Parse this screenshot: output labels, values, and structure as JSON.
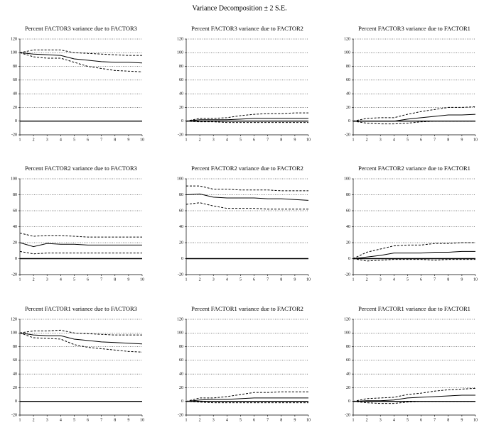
{
  "title": "Variance Decomposition ± 2 S.E.",
  "chart_data": [
    {
      "type": "line",
      "title": "Percent FACTOR3 variance due to FACTOR3",
      "x": [
        1,
        2,
        3,
        4,
        5,
        6,
        7,
        8,
        9,
        10
      ],
      "xlim": [
        1,
        10
      ],
      "xticks": [
        1,
        2,
        3,
        4,
        5,
        6,
        7,
        8,
        9,
        10
      ],
      "ylim": [
        -20,
        120
      ],
      "yticks": [
        -20,
        0,
        20,
        40,
        60,
        80,
        100,
        120
      ],
      "grid": true,
      "series": [
        {
          "color": "#000000",
          "style": "solid",
          "values": [
            100,
            98,
            97,
            96,
            91,
            89,
            87,
            86,
            86,
            85
          ]
        },
        {
          "color": "#000000",
          "style": "dashed",
          "values": [
            100,
            104,
            104,
            104,
            100,
            99,
            98,
            97,
            96,
            96
          ]
        },
        {
          "color": "#000000",
          "style": "dashed",
          "values": [
            100,
            94,
            92,
            92,
            86,
            80,
            77,
            74,
            73,
            72
          ]
        }
      ]
    },
    {
      "type": "line",
      "title": "Percent FACTOR3 variance due to FACTOR2",
      "x": [
        1,
        2,
        3,
        4,
        5,
        6,
        7,
        8,
        9,
        10
      ],
      "xlim": [
        1,
        10
      ],
      "xticks": [
        1,
        2,
        3,
        4,
        5,
        6,
        7,
        8,
        9,
        10
      ],
      "ylim": [
        -20,
        120
      ],
      "yticks": [
        -20,
        0,
        20,
        40,
        60,
        80,
        100,
        120
      ],
      "grid": true,
      "series": [
        {
          "color": "#000000",
          "style": "solid",
          "values": [
            0,
            2,
            2,
            2,
            3,
            4,
            4,
            4,
            4,
            4
          ]
        },
        {
          "color": "#000000",
          "style": "dashed",
          "values": [
            0,
            4,
            4,
            5,
            8,
            10,
            11,
            11,
            12,
            12
          ]
        },
        {
          "color": "#000000",
          "style": "dashed",
          "values": [
            0,
            -1,
            -1,
            -2,
            -2,
            -2,
            -2,
            -2,
            -2,
            -2
          ]
        }
      ]
    },
    {
      "type": "line",
      "title": "Percent FACTOR3 variance due to FACTOR1",
      "x": [
        1,
        2,
        3,
        4,
        5,
        6,
        7,
        8,
        9,
        10
      ],
      "xlim": [
        1,
        10
      ],
      "xticks": [
        1,
        2,
        3,
        4,
        5,
        6,
        7,
        8,
        9,
        10
      ],
      "ylim": [
        -20,
        120
      ],
      "yticks": [
        -20,
        0,
        20,
        40,
        60,
        80,
        100,
        120
      ],
      "grid": true,
      "series": [
        {
          "color": "#000000",
          "style": "solid",
          "values": [
            0,
            0,
            0,
            0,
            3,
            5,
            7,
            9,
            9,
            10
          ]
        },
        {
          "color": "#000000",
          "style": "dashed",
          "values": [
            0,
            4,
            5,
            5,
            10,
            14,
            17,
            20,
            20,
            21
          ]
        },
        {
          "color": "#000000",
          "style": "dashed",
          "values": [
            0,
            -3,
            -4,
            -4,
            -3,
            -1,
            0,
            0,
            0,
            0
          ]
        }
      ]
    },
    {
      "type": "line",
      "title": "Percent FACTOR2 variance due to FACTOR3",
      "x": [
        1,
        2,
        3,
        4,
        5,
        6,
        7,
        8,
        9,
        10
      ],
      "xlim": [
        1,
        10
      ],
      "xticks": [
        1,
        2,
        3,
        4,
        5,
        6,
        7,
        8,
        9,
        10
      ],
      "ylim": [
        -20,
        100
      ],
      "yticks": [
        -20,
        0,
        20,
        40,
        60,
        80,
        100
      ],
      "grid": true,
      "series": [
        {
          "color": "#000000",
          "style": "solid",
          "values": [
            20,
            15,
            19,
            18,
            18,
            17,
            17,
            17,
            17,
            17
          ]
        },
        {
          "color": "#000000",
          "style": "dashed",
          "values": [
            32,
            28,
            29,
            29,
            28,
            27,
            27,
            27,
            27,
            27
          ]
        },
        {
          "color": "#000000",
          "style": "dashed",
          "values": [
            9,
            6,
            7,
            7,
            7,
            7,
            7,
            7,
            7,
            7
          ]
        }
      ]
    },
    {
      "type": "line",
      "title": "Percent FACTOR2 variance due to FACTOR2",
      "x": [
        1,
        2,
        3,
        4,
        5,
        6,
        7,
        8,
        9,
        10
      ],
      "xlim": [
        1,
        10
      ],
      "xticks": [
        1,
        2,
        3,
        4,
        5,
        6,
        7,
        8,
        9,
        10
      ],
      "ylim": [
        -20,
        100
      ],
      "yticks": [
        -20,
        0,
        20,
        40,
        60,
        80,
        100
      ],
      "grid": true,
      "series": [
        {
          "color": "#000000",
          "style": "solid",
          "values": [
            80,
            81,
            77,
            76,
            76,
            76,
            75,
            75,
            74,
            73
          ]
        },
        {
          "color": "#000000",
          "style": "dashed",
          "values": [
            91,
            91,
            87,
            87,
            86,
            86,
            86,
            85,
            85,
            85
          ]
        },
        {
          "color": "#000000",
          "style": "dashed",
          "values": [
            68,
            70,
            66,
            63,
            63,
            63,
            62,
            62,
            62,
            62
          ]
        }
      ]
    },
    {
      "type": "line",
      "title": "Percent FACTOR2 variance due to FACTOR1",
      "x": [
        1,
        2,
        3,
        4,
        5,
        6,
        7,
        8,
        9,
        10
      ],
      "xlim": [
        1,
        10
      ],
      "xticks": [
        1,
        2,
        3,
        4,
        5,
        6,
        7,
        8,
        9,
        10
      ],
      "ylim": [
        -20,
        100
      ],
      "yticks": [
        -20,
        0,
        20,
        40,
        60,
        80,
        100
      ],
      "grid": true,
      "series": [
        {
          "color": "#000000",
          "style": "solid",
          "values": [
            0,
            2,
            4,
            7,
            7,
            7,
            8,
            8,
            9,
            9
          ]
        },
        {
          "color": "#000000",
          "style": "dashed",
          "values": [
            0,
            8,
            12,
            16,
            17,
            17,
            19,
            19,
            20,
            20
          ]
        },
        {
          "color": "#000000",
          "style": "dashed",
          "values": [
            0,
            -3,
            -2,
            -1,
            -1,
            -1,
            -2,
            -1,
            -1,
            -1
          ]
        }
      ]
    },
    {
      "type": "line",
      "title": "Percent FACTOR1 variance due to FACTOR3",
      "x": [
        1,
        2,
        3,
        4,
        5,
        6,
        7,
        8,
        9,
        10
      ],
      "xlim": [
        1,
        10
      ],
      "xticks": [
        1,
        2,
        3,
        4,
        5,
        6,
        7,
        8,
        9,
        10
      ],
      "ylim": [
        -20,
        120
      ],
      "yticks": [
        -20,
        0,
        20,
        40,
        60,
        80,
        100,
        120
      ],
      "grid": true,
      "series": [
        {
          "color": "#000000",
          "style": "solid",
          "values": [
            100,
            97,
            96,
            96,
            91,
            89,
            87,
            86,
            85,
            84
          ]
        },
        {
          "color": "#000000",
          "style": "dashed",
          "values": [
            100,
            103,
            103,
            104,
            100,
            99,
            98,
            97,
            97,
            97
          ]
        },
        {
          "color": "#000000",
          "style": "dashed",
          "values": [
            100,
            93,
            92,
            91,
            83,
            79,
            77,
            75,
            73,
            72
          ]
        }
      ]
    },
    {
      "type": "line",
      "title": "Percent FACTOR1 variance due to FACTOR2",
      "x": [
        1,
        2,
        3,
        4,
        5,
        6,
        7,
        8,
        9,
        10
      ],
      "xlim": [
        1,
        10
      ],
      "xticks": [
        1,
        2,
        3,
        4,
        5,
        6,
        7,
        8,
        9,
        10
      ],
      "ylim": [
        -20,
        120
      ],
      "yticks": [
        -20,
        0,
        20,
        40,
        60,
        80,
        100,
        120
      ],
      "grid": true,
      "series": [
        {
          "color": "#000000",
          "style": "solid",
          "values": [
            0,
            2,
            3,
            3,
            4,
            5,
            5,
            5,
            5,
            5
          ]
        },
        {
          "color": "#000000",
          "style": "dashed",
          "values": [
            0,
            5,
            5,
            7,
            10,
            13,
            13,
            14,
            14,
            14
          ]
        },
        {
          "color": "#000000",
          "style": "dashed",
          "values": [
            0,
            -1,
            -2,
            -2,
            -2,
            -2,
            -2,
            -2,
            -2,
            -2
          ]
        }
      ]
    },
    {
      "type": "line",
      "title": "Percent FACTOR1 variance due to FACTOR1",
      "x": [
        1,
        2,
        3,
        4,
        5,
        6,
        7,
        8,
        9,
        10
      ],
      "xlim": [
        1,
        10
      ],
      "xticks": [
        1,
        2,
        3,
        4,
        5,
        6,
        7,
        8,
        9,
        10
      ],
      "ylim": [
        -20,
        120
      ],
      "yticks": [
        -20,
        0,
        20,
        40,
        60,
        80,
        100,
        120
      ],
      "grid": true,
      "series": [
        {
          "color": "#000000",
          "style": "solid",
          "values": [
            0,
            1,
            1,
            2,
            5,
            6,
            7,
            8,
            9,
            9
          ]
        },
        {
          "color": "#000000",
          "style": "dashed",
          "values": [
            0,
            4,
            5,
            6,
            10,
            12,
            15,
            17,
            18,
            19
          ]
        },
        {
          "color": "#000000",
          "style": "dashed",
          "values": [
            0,
            -2,
            -3,
            -3,
            -1,
            0,
            0,
            0,
            0,
            0
          ]
        }
      ]
    }
  ]
}
